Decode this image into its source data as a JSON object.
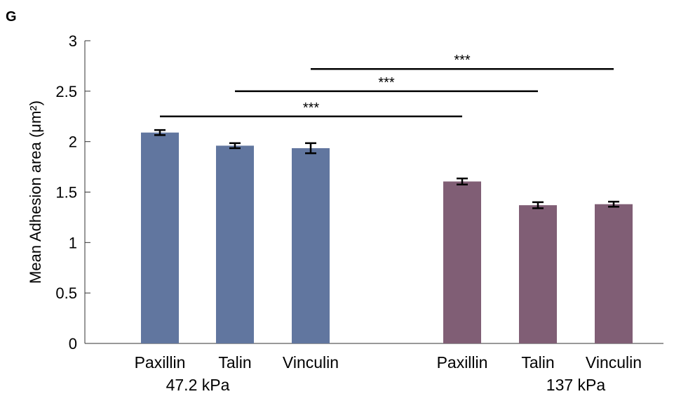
{
  "panel_label": "G",
  "chart_data": {
    "type": "bar",
    "ylabel": "Mean Adhesion area",
    "ylabel_unit": "(μm²)",
    "ylim": [
      0,
      3
    ],
    "yticks": [
      "0",
      "0.5",
      "1",
      "1.5",
      "2",
      "2.5",
      "3"
    ],
    "grid": false,
    "bars": [
      {
        "label": "Paxillin",
        "group": 0,
        "value": 2.09,
        "error": 0.025
      },
      {
        "label": "Talin",
        "group": 0,
        "value": 1.96,
        "error": 0.025
      },
      {
        "label": "Vinculin",
        "group": 0,
        "value": 1.935,
        "error": 0.05
      },
      {
        "label": "Paxillin",
        "group": 1,
        "value": 1.605,
        "error": 0.03
      },
      {
        "label": "Talin",
        "group": 1,
        "value": 1.37,
        "error": 0.03
      },
      {
        "label": "Vinculin",
        "group": 1,
        "value": 1.38,
        "error": 0.025
      }
    ],
    "groups": [
      {
        "label": "47.2 kPa",
        "color": "#61769f"
      },
      {
        "label": "137 kPa",
        "color": "#805e75"
      }
    ],
    "significance": [
      {
        "from": 0,
        "to": 3,
        "y": 2.25,
        "label": "***"
      },
      {
        "from": 1,
        "to": 4,
        "y": 2.5,
        "label": "***"
      },
      {
        "from": 2,
        "to": 5,
        "y": 2.72,
        "label": "***"
      }
    ]
  }
}
